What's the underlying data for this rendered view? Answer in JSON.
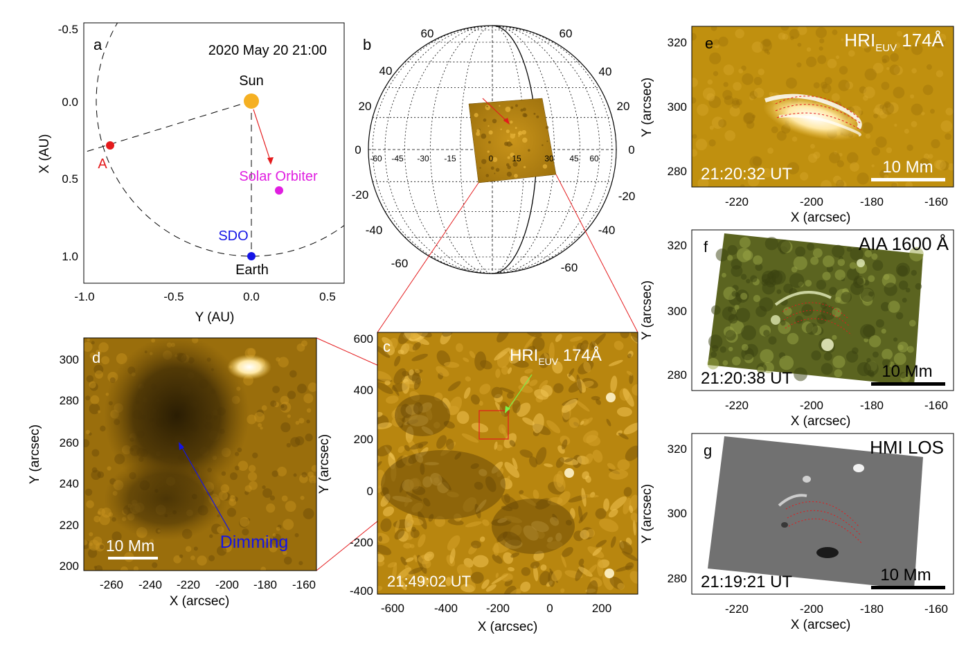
{
  "panel_a": {
    "letter": "a",
    "date": "2020 May 20 21:00",
    "xlabel": "Y (AU)",
    "ylabel": "X (AU)",
    "xlim": [
      -1.1,
      0.6
    ],
    "ylim": [
      -0.55,
      1.2
    ],
    "xticks": [
      "-1.0",
      "-0.5",
      "0.0",
      "0.5"
    ],
    "yticks": [
      "-0.5",
      "0.0",
      "0.5",
      "1.0"
    ],
    "objects": [
      {
        "name": "Sun",
        "label": "Sun",
        "y": 0.0,
        "x": 0.0,
        "color": "#f5b022"
      },
      {
        "name": "A",
        "label": "A",
        "y": -0.92,
        "x": 0.29,
        "color": "#e41a1c"
      },
      {
        "name": "Solar Orbiter",
        "label": "Solar Orbiter",
        "y": 0.18,
        "x": 0.58,
        "color": "#e01ee0"
      },
      {
        "name": "SDO",
        "label": "SDO",
        "y": 0.0,
        "x": 1.01,
        "color": "#1414e6"
      },
      {
        "name": "Earth",
        "label": "Earth",
        "y": 0.0,
        "x": 1.01,
        "color": "#1414e6"
      }
    ]
  },
  "panel_b": {
    "letter": "b",
    "lat_labels_left": [
      "60",
      "40",
      "20",
      "0",
      "-20",
      "-40",
      "-60"
    ],
    "lat_labels_right": [
      "60",
      "40",
      "20",
      "0",
      "-20",
      "-40",
      "-60"
    ],
    "lon_labels": [
      "-60",
      "-45",
      "-30",
      "-15",
      "0",
      "15",
      "30",
      "45",
      "60"
    ]
  },
  "panel_c": {
    "letter": "c",
    "instrument": "HRI",
    "instrument_sub": "EUV",
    "wavelength": " 174Å",
    "time": "21:49:02 UT",
    "xlabel": "X (arcsec)",
    "ylabel": "Y (arcsec)",
    "xticks": [
      "-600",
      "-400",
      "-200",
      "0",
      "200"
    ],
    "yticks": [
      "600",
      "400",
      "200",
      "0",
      "-200",
      "-400"
    ]
  },
  "panel_d": {
    "letter": "d",
    "scale": "10 Mm",
    "annotation": "Dimming",
    "xlabel": "X (arcsec)",
    "ylabel": "Y (arcsec)",
    "xticks": [
      "-260",
      "-240",
      "-220",
      "-200",
      "-180",
      "-160"
    ],
    "yticks": [
      "300",
      "280",
      "260",
      "240",
      "220",
      "200"
    ]
  },
  "panel_e": {
    "letter": "e",
    "instrument": "HRI",
    "instrument_sub": "EUV",
    "wavelength": " 174Å",
    "time": "21:20:32 UT",
    "scale": "10 Mm",
    "xlabel": "X (arcsec)",
    "ylabel": "Y (arcsec)",
    "xticks": [
      "-220",
      "-200",
      "-180",
      "-160"
    ],
    "yticks": [
      "320",
      "300",
      "280"
    ]
  },
  "panel_f": {
    "letter": "f",
    "title": "AIA 1600 Å",
    "time": "21:20:38 UT",
    "scale": "10 Mm",
    "xlabel": "X (arcsec)",
    "ylabel": "Y (arcsec)",
    "xticks": [
      "-220",
      "-200",
      "-180",
      "-160"
    ],
    "yticks": [
      "320",
      "300",
      "280"
    ]
  },
  "panel_g": {
    "letter": "g",
    "title": "HMI LOS",
    "time": "21:19:21 UT",
    "scale": "10 Mm",
    "xlabel": "X (arcsec)",
    "ylabel": "Y (arcsec)",
    "xticks": [
      "-220",
      "-200",
      "-180",
      "-160"
    ],
    "yticks": [
      "320",
      "300",
      "280"
    ]
  },
  "colors": {
    "euv_dark": "#6b4a06",
    "euv_mid": "#b8860f",
    "euv_bright": "#f1c24a",
    "aia_dark": "#2e3410",
    "aia_mid": "#6b7325",
    "hmi_gray": "#6e6e6e",
    "connector": "#e41a1c"
  }
}
